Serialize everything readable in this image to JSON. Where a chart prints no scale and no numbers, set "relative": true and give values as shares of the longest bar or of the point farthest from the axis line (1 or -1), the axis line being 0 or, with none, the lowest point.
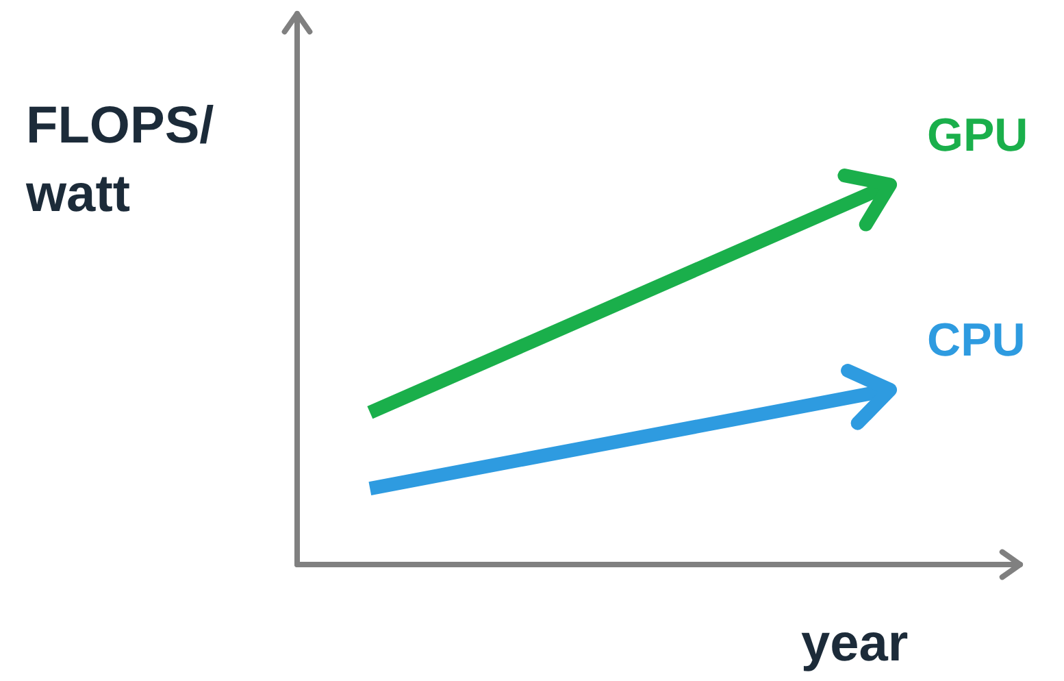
{
  "chart_data": {
    "type": "line",
    "relative": true,
    "ylabel": "FLOPS/ watt",
    "xlabel": "year",
    "categories": [
      null,
      null
    ],
    "series": [
      {
        "name": "GPU",
        "color": "#1aaf4b",
        "values": [
          0.4,
          1
        ]
      },
      {
        "name": "CPU",
        "color": "#2e9be0",
        "values": [
          0.2,
          0.46
        ]
      }
    ]
  }
}
